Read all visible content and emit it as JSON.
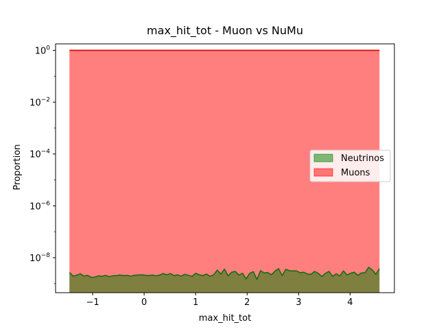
{
  "chart_data": {
    "type": "area",
    "title": "max_hit_tot - Muon vs NuMu",
    "xlabel": "max_hit_tot",
    "ylabel": "Proportion",
    "xlim": [
      -1.72,
      4.86
    ],
    "ylim_log10": [
      -9.35,
      0.25
    ],
    "yscale": "log",
    "grid": false,
    "legend_placement": "center-right",
    "x_ticks": [
      -1,
      0,
      1,
      2,
      3,
      4
    ],
    "x_tick_labels": [
      "−1",
      "0",
      "1",
      "2",
      "3",
      "4"
    ],
    "y_ticks_log10": [
      0,
      -2,
      -4,
      -6,
      -8
    ],
    "y_tick_labels": [
      {
        "base": "10",
        "exp": "0"
      },
      {
        "base": "10",
        "exp": "−2"
      },
      {
        "base": "10",
        "exp": "−4"
      },
      {
        "base": "10",
        "exp": "−6"
      },
      {
        "base": "10",
        "exp": "−8"
      }
    ],
    "series": [
      {
        "name": "Neutrinos",
        "fill_color": "#008000",
        "line_color": "#0e6b0e",
        "x": [
          -1.45,
          -1.38,
          -1.31,
          -1.24,
          -1.17,
          -1.1,
          -1.03,
          -0.96,
          -0.89,
          -0.82,
          -0.75,
          -0.68,
          -0.61,
          -0.54,
          -0.47,
          -0.4,
          -0.33,
          -0.26,
          -0.19,
          -0.12,
          -0.05,
          0.02,
          0.09,
          0.16,
          0.23,
          0.3,
          0.37,
          0.44,
          0.51,
          0.58,
          0.65,
          0.72,
          0.79,
          0.86,
          0.93,
          1.0,
          1.07,
          1.14,
          1.21,
          1.28,
          1.35,
          1.42,
          1.49,
          1.56,
          1.63,
          1.7,
          1.77,
          1.84,
          1.91,
          1.98,
          2.05,
          2.12,
          2.19,
          2.26,
          2.33,
          2.4,
          2.47,
          2.54,
          2.61,
          2.68,
          2.75,
          2.82,
          2.89,
          2.96,
          3.03,
          3.1,
          3.17,
          3.24,
          3.31,
          3.38,
          3.45,
          3.52,
          3.59,
          3.66,
          3.73,
          3.8,
          3.87,
          3.94,
          4.01,
          4.08,
          4.15,
          4.22,
          4.29,
          4.36,
          4.43,
          4.5,
          4.57
        ],
        "log10_values": [
          -8.57,
          -8.71,
          -8.68,
          -8.62,
          -8.71,
          -8.68,
          -8.76,
          -8.75,
          -8.7,
          -8.72,
          -8.68,
          -8.73,
          -8.7,
          -8.69,
          -8.67,
          -8.69,
          -8.68,
          -8.71,
          -8.68,
          -8.67,
          -8.66,
          -8.68,
          -8.69,
          -8.67,
          -8.7,
          -8.67,
          -8.61,
          -8.66,
          -8.61,
          -8.69,
          -8.66,
          -8.71,
          -8.64,
          -8.68,
          -8.72,
          -8.6,
          -8.66,
          -8.69,
          -8.63,
          -8.72,
          -8.66,
          -8.48,
          -8.63,
          -8.44,
          -8.7,
          -8.56,
          -8.53,
          -8.67,
          -8.6,
          -8.82,
          -8.6,
          -8.54,
          -8.84,
          -8.5,
          -8.59,
          -8.57,
          -8.66,
          -8.52,
          -8.42,
          -8.69,
          -8.45,
          -8.5,
          -8.51,
          -8.51,
          -8.58,
          -8.56,
          -8.63,
          -8.64,
          -8.53,
          -8.6,
          -8.73,
          -8.6,
          -8.53,
          -8.72,
          -8.62,
          -8.71,
          -8.51,
          -8.67,
          -8.6,
          -8.56,
          -8.68,
          -8.59,
          -8.58,
          -8.37,
          -8.47,
          -8.64,
          -8.42
        ]
      },
      {
        "name": "Muons",
        "fill_color": "#ff0000",
        "line_color": "#d91a1a",
        "x": [
          -1.45,
          4.57
        ],
        "log10_values": [
          0.0,
          0.0
        ]
      }
    ]
  }
}
